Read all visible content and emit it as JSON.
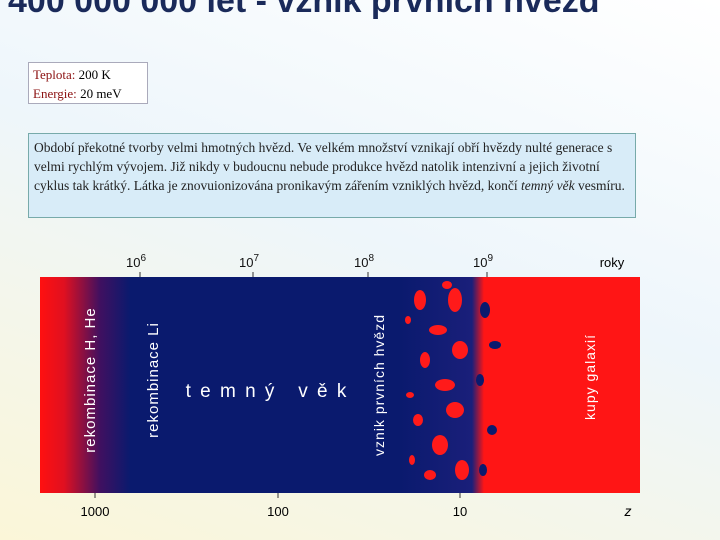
{
  "header": {
    "title": "400 000 000 let - vznik prvních hvězd"
  },
  "info": [
    {
      "label": "Teplota:",
      "value": "200 K"
    },
    {
      "label": "Energie:",
      "value": "20 meV"
    }
  ],
  "description": {
    "text": "Období překotné tvorby velmi hmotných hvězd. Ve velkém množství vznikají obří hvězdy nulté generace s velmi rychlým vývojem. Již nikdy v budoucnu nebude produkce hvězd natolik intenzivní a jejich životní cyklus tak krátký. Látka je znovuionizována pronikavým zářením vzniklých hvězd, končí ",
    "emphasis": "temný věk",
    "end": " vesmíru."
  },
  "diagram": {
    "top_axis": [
      {
        "base": "10",
        "exp": "6"
      },
      {
        "base": "10",
        "exp": "7"
      },
      {
        "base": "10",
        "exp": "8"
      },
      {
        "base": "10",
        "exp": "9"
      }
    ],
    "top_unit": "roky",
    "bottom_axis": [
      "1000",
      "100",
      "10"
    ],
    "bottom_unit": "z",
    "labels": [
      "rekombinace H, He",
      "rekombinace Li",
      "vznik prvních hvězd",
      "kupy galaxií"
    ],
    "era": "t e m n ý   v ě k"
  }
}
